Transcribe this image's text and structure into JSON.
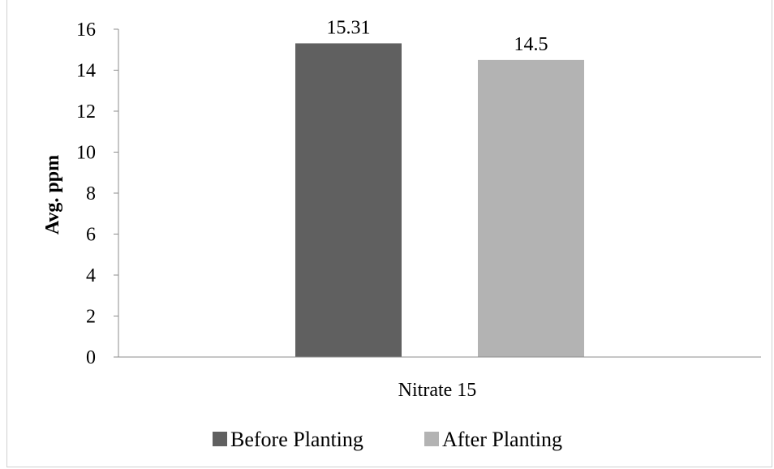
{
  "chart_data": {
    "type": "bar",
    "categories": [
      "Nitrate 15"
    ],
    "series": [
      {
        "name": "Before Planting",
        "values": [
          15.31
        ],
        "color": "#606060"
      },
      {
        "name": "After Planting",
        "values": [
          14.5
        ],
        "color": "#b3b3b3"
      }
    ],
    "data_labels": [
      "15.31",
      "14.5"
    ],
    "title": "",
    "xlabel": "",
    "ylabel": "Avg. ppm",
    "ylim": [
      0,
      16
    ],
    "yticks": [
      0,
      2,
      4,
      6,
      8,
      10,
      12,
      14,
      16
    ],
    "grid": false,
    "legend": "bottom"
  }
}
